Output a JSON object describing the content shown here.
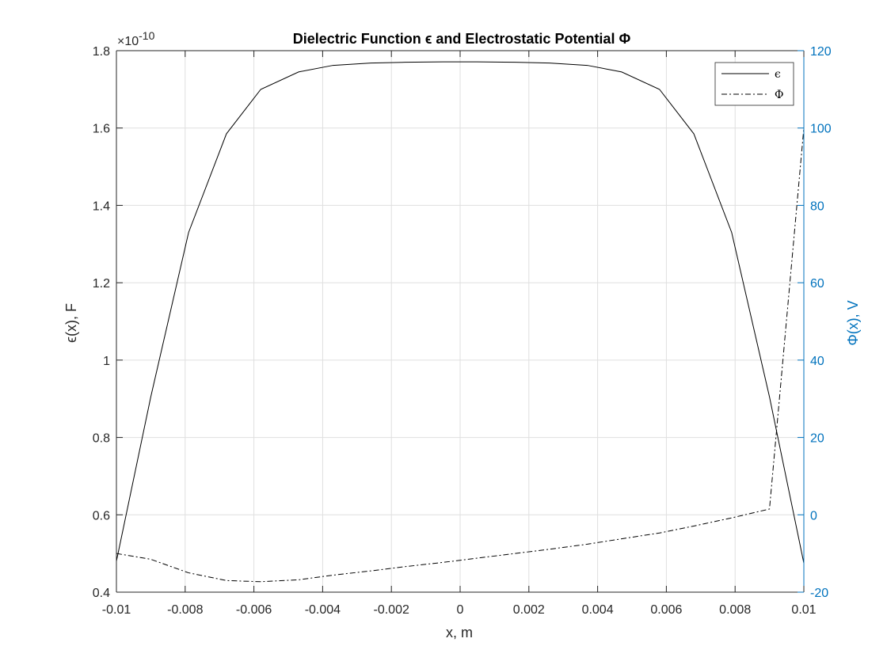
{
  "chart_data": {
    "type": "line",
    "title": "Dielectric Function ϵ and Electrostatic Potential Φ",
    "xlabel": "x, m",
    "ylabel_left": "ϵ(x), F",
    "ylabel_right": "Φ(x), V",
    "left_axis_exponent": "×10",
    "left_axis_exponent_power": "-10",
    "x_ticks": [
      "-0.01",
      "-0.008",
      "-0.006",
      "-0.004",
      "-0.002",
      "0",
      "0.002",
      "0.004",
      "0.006",
      "0.008",
      "0.01"
    ],
    "y_left_ticks": [
      "0.4",
      "0.6",
      "0.8",
      "1",
      "1.2",
      "1.4",
      "1.6",
      "1.8"
    ],
    "y_right_ticks": [
      "-20",
      "0",
      "20",
      "40",
      "60",
      "80",
      "100",
      "120"
    ],
    "xlim": [
      -0.01,
      0.01
    ],
    "ylim_left": [
      0.4,
      1.8
    ],
    "ylim_right": [
      -20,
      120
    ],
    "grid": true,
    "legend_position": "top-right",
    "colors": {
      "left_axis": "#262626",
      "right_axis": "#0072bd",
      "series": "#000000",
      "grid": "#dfdfdf"
    },
    "x": [
      -0.01,
      -0.009,
      -0.0079,
      -0.0068,
      -0.0058,
      -0.0047,
      -0.0037,
      -0.0026,
      -0.0016,
      -0.0005,
      0.0005,
      0.0016,
      0.0026,
      0.0037,
      0.0047,
      0.0058,
      0.0068,
      0.0079,
      0.009,
      0.01
    ],
    "series": [
      {
        "name": "ϵ",
        "axis": "left",
        "style": "solid",
        "values": [
          0.48,
          0.905,
          1.33,
          1.585,
          1.7,
          1.745,
          1.762,
          1.768,
          1.77,
          1.771,
          1.771,
          1.77,
          1.768,
          1.762,
          1.745,
          1.7,
          1.585,
          1.33,
          0.905,
          0.475
        ]
      },
      {
        "name": "Φ",
        "axis": "right",
        "style": "dashdot",
        "values": [
          -10.0,
          -11.5,
          -15.0,
          -17.0,
          -17.3,
          -16.8,
          -15.6,
          -14.5,
          -13.4,
          -12.3,
          -11.2,
          -10.0,
          -8.9,
          -7.6,
          -6.2,
          -4.7,
          -2.9,
          -0.8,
          1.5,
          100.0
        ]
      }
    ]
  }
}
